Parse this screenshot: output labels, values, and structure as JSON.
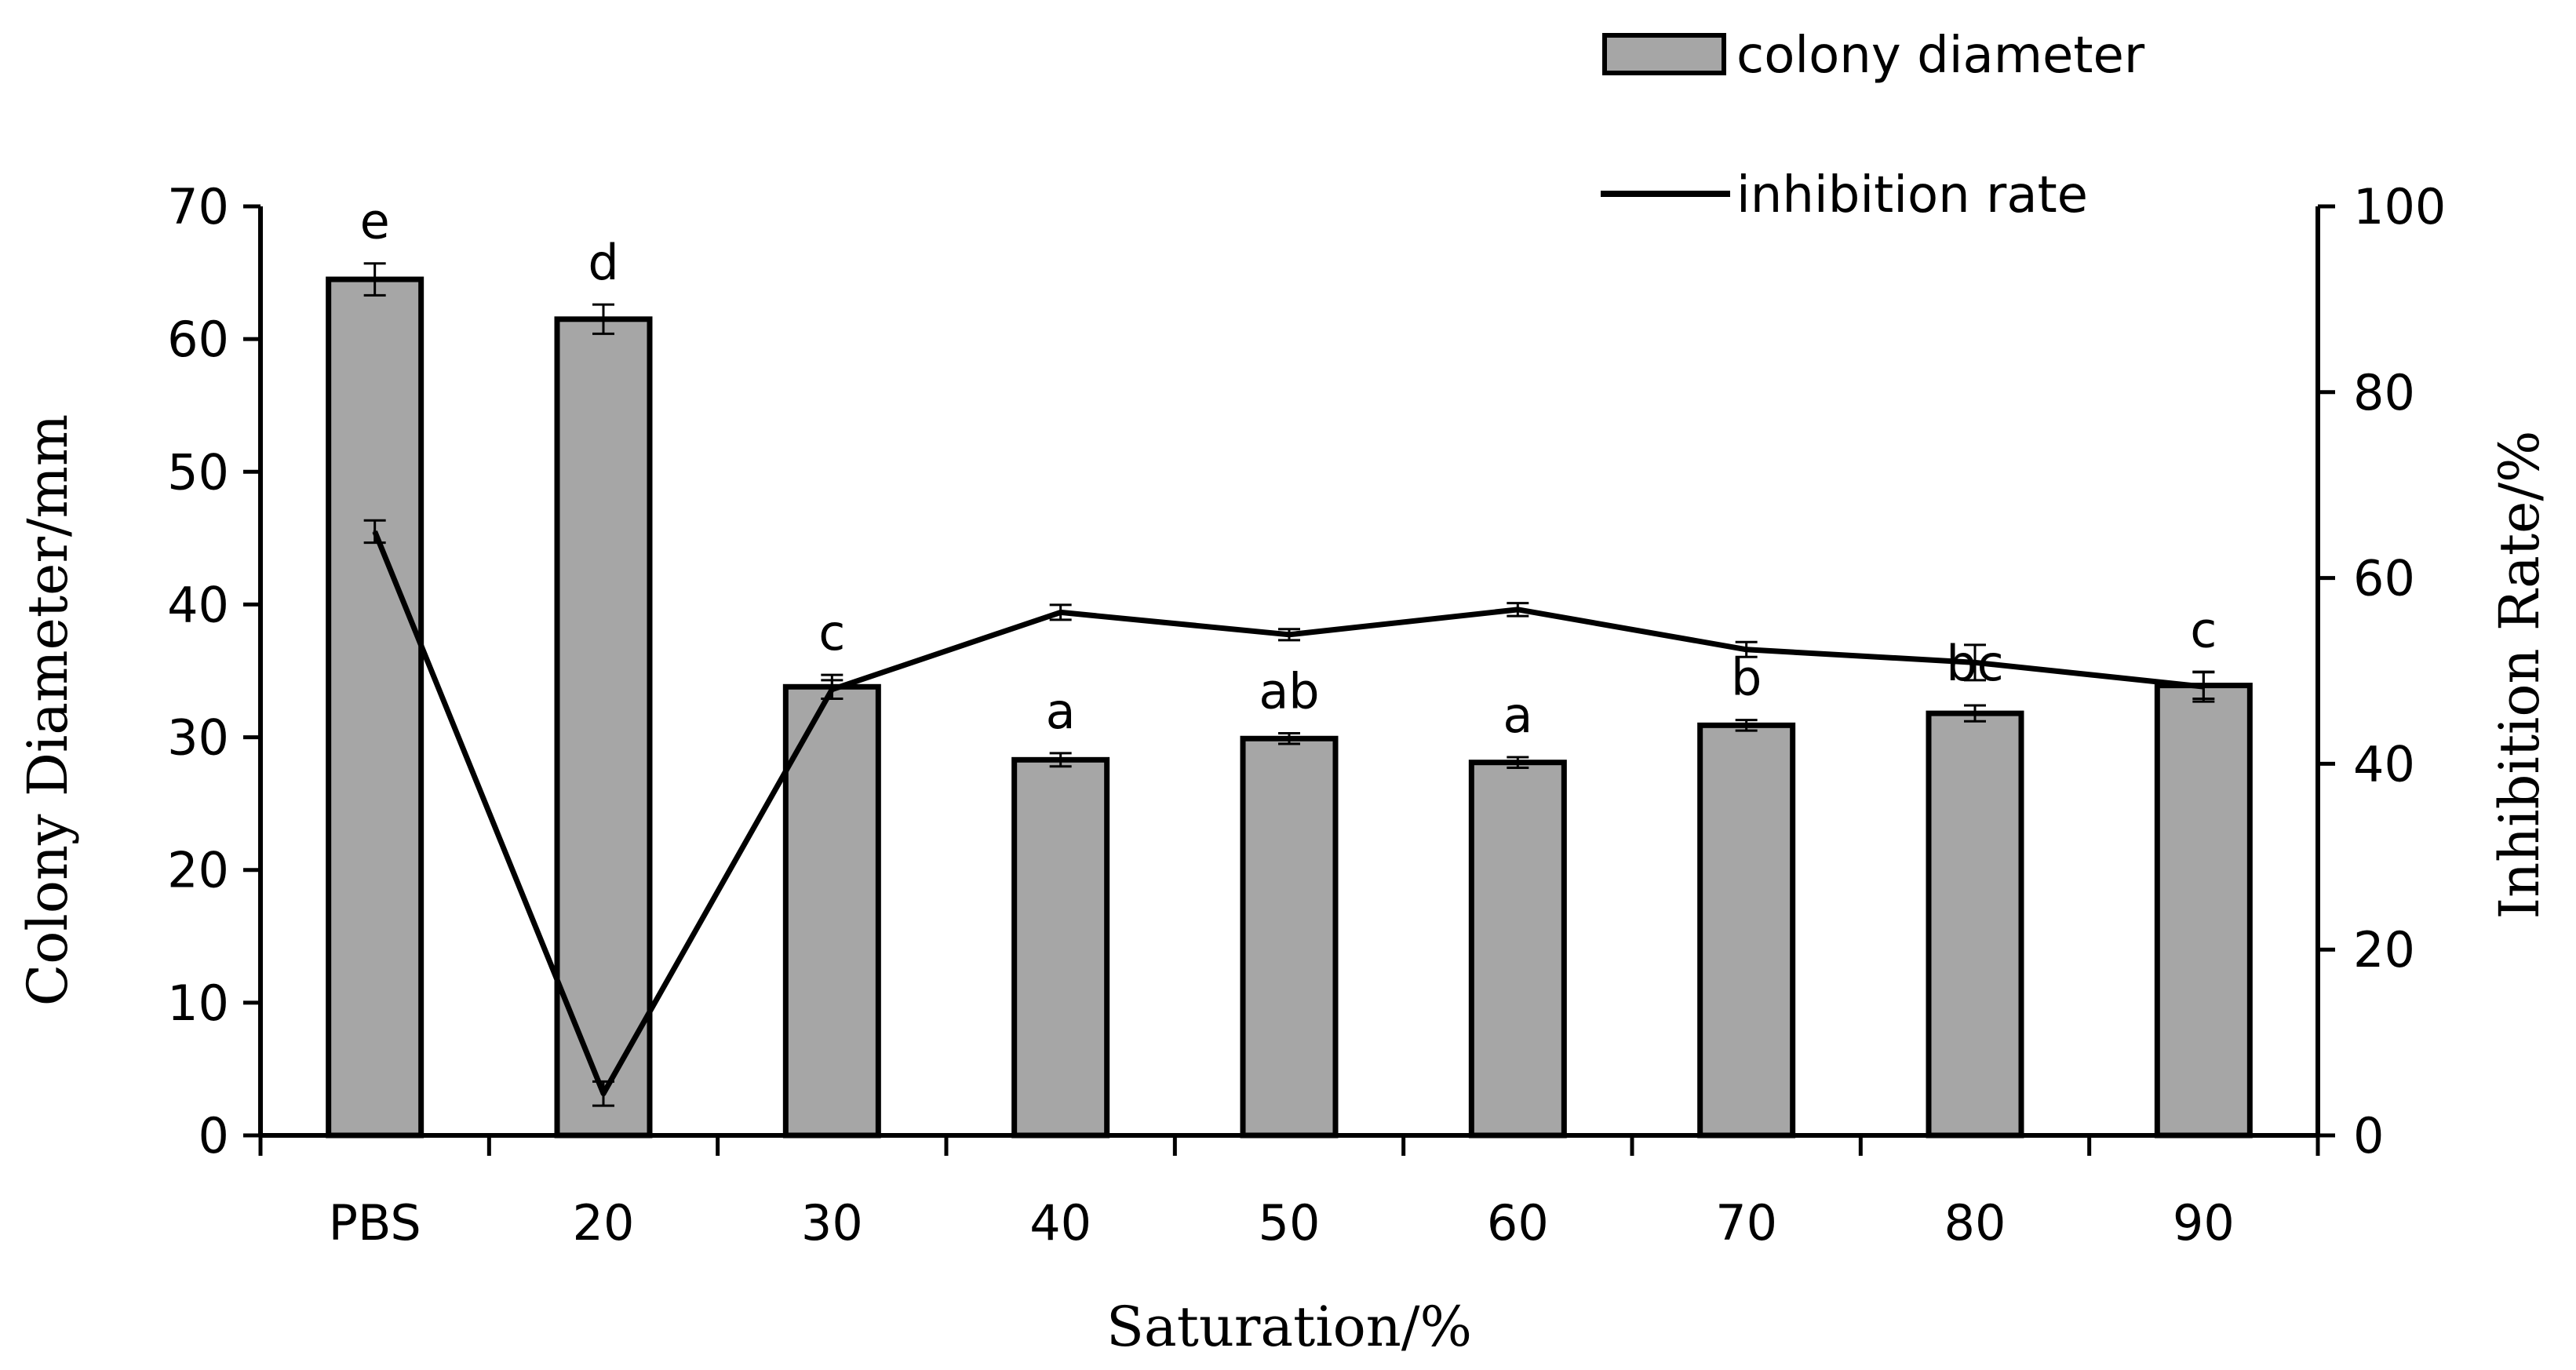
{
  "chart_data": {
    "type": "bar+line",
    "title": "",
    "xlabel": "Saturation/%",
    "ylabel_left": "Colony Diameter/mm",
    "ylabel_right": "Inhibition Rate/%",
    "categories": [
      "PBS",
      "20",
      "30",
      "40",
      "50",
      "60",
      "70",
      "80",
      "90"
    ],
    "ylim_left": [
      0,
      70
    ],
    "yticks_left": [
      0,
      10,
      20,
      30,
      40,
      50,
      60,
      70
    ],
    "ylim_right": [
      0,
      100
    ],
    "yticks_right": [
      0,
      20,
      40,
      60,
      80,
      100
    ],
    "grid": false,
    "legend_position": "top-right",
    "series": [
      {
        "name": "colony diameter",
        "type": "bar",
        "axis": "left",
        "color": "#a6a6a6",
        "values": [
          64.5,
          61.5,
          33.8,
          28.3,
          29.9,
          28.1,
          30.9,
          31.8,
          33.9
        ],
        "errors": [
          1.2,
          1.1,
          0.9,
          0.5,
          0.4,
          0.4,
          0.4,
          0.6,
          1.0
        ],
        "labels": [
          "e",
          "d",
          "c",
          "a",
          "ab",
          "a",
          "b",
          "bc",
          "c"
        ]
      },
      {
        "name": "inhibition rate",
        "type": "line",
        "axis": "right",
        "color": "#000000",
        "values": [
          65.0,
          4.5,
          48.0,
          56.3,
          53.9,
          56.6,
          52.3,
          50.9,
          48.3
        ],
        "errors": [
          1.2,
          1.3,
          1.0,
          0.8,
          0.6,
          0.7,
          0.8,
          1.9,
          1.6
        ]
      }
    ]
  }
}
